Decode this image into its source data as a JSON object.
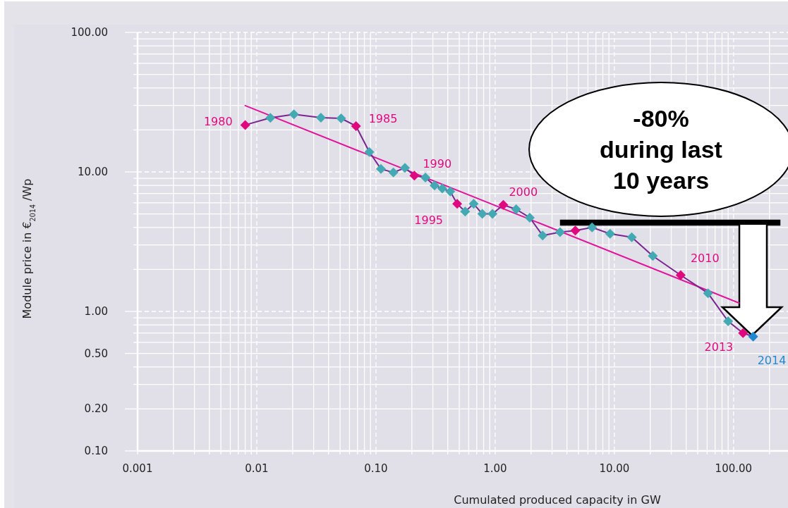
{
  "chart_data": {
    "type": "line",
    "xlabel": "Cumulated produced capacity in GW",
    "ylabel": "Module price in €$_{2014}$ /Wp",
    "log": "xy",
    "grid": true,
    "marker": "diamond",
    "xlim": [
      0.001,
      290
    ],
    "ylim": [
      0.1,
      100
    ],
    "xticks": [
      {
        "value": 0.001,
        "label": "0.001"
      },
      {
        "value": 0.002,
        "label": null
      },
      {
        "value": 0.003,
        "label": null
      },
      {
        "value": 0.004,
        "label": null
      },
      {
        "value": 0.005,
        "label": null
      },
      {
        "value": 0.006,
        "label": null
      },
      {
        "value": 0.007,
        "label": null
      },
      {
        "value": 0.008,
        "label": null
      },
      {
        "value": 0.009,
        "label": null
      },
      {
        "value": 0.01,
        "label": "0.01"
      },
      {
        "value": 0.02,
        "label": null
      },
      {
        "value": 0.03,
        "label": null
      },
      {
        "value": 0.04,
        "label": null
      },
      {
        "value": 0.05,
        "label": null
      },
      {
        "value": 0.06,
        "label": null
      },
      {
        "value": 0.07,
        "label": null
      },
      {
        "value": 0.08,
        "label": null
      },
      {
        "value": 0.09,
        "label": null
      },
      {
        "value": 0.1,
        "label": "0.10"
      },
      {
        "value": 0.2,
        "label": null
      },
      {
        "value": 0.3,
        "label": null
      },
      {
        "value": 0.4,
        "label": null
      },
      {
        "value": 0.5,
        "label": null
      },
      {
        "value": 0.6,
        "label": null
      },
      {
        "value": 0.7,
        "label": null
      },
      {
        "value": 0.8,
        "label": null
      },
      {
        "value": 0.9,
        "label": null
      },
      {
        "value": 1,
        "label": "1.00"
      },
      {
        "value": 2,
        "label": null
      },
      {
        "value": 3,
        "label": null
      },
      {
        "value": 4,
        "label": null
      },
      {
        "value": 5,
        "label": null
      },
      {
        "value": 6,
        "label": null
      },
      {
        "value": 7,
        "label": null
      },
      {
        "value": 8,
        "label": null
      },
      {
        "value": 9,
        "label": null
      },
      {
        "value": 10,
        "label": "10.00"
      },
      {
        "value": 20,
        "label": null
      },
      {
        "value": 30,
        "label": null
      },
      {
        "value": 40,
        "label": null
      },
      {
        "value": 50,
        "label": null
      },
      {
        "value": 60,
        "label": null
      },
      {
        "value": 70,
        "label": null
      },
      {
        "value": 80,
        "label": null
      },
      {
        "value": 90,
        "label": null
      },
      {
        "value": 100,
        "label": "100.00"
      },
      {
        "value": 200,
        "label": null
      }
    ],
    "yticks": [
      {
        "value": 0.1,
        "label": "0.10"
      },
      {
        "value": 0.2,
        "label": "0.20"
      },
      {
        "value": 0.3,
        "label": null
      },
      {
        "value": 0.4,
        "label": null
      },
      {
        "value": 0.5,
        "label": "0.50"
      },
      {
        "value": 0.6,
        "label": null
      },
      {
        "value": 0.7,
        "label": null
      },
      {
        "value": 0.8,
        "label": null
      },
      {
        "value": 0.9,
        "label": null
      },
      {
        "value": 1,
        "label": "1.00"
      },
      {
        "value": 2,
        "label": null
      },
      {
        "value": 3,
        "label": null
      },
      {
        "value": 4,
        "label": null
      },
      {
        "value": 5,
        "label": null
      },
      {
        "value": 6,
        "label": null
      },
      {
        "value": 7,
        "label": null
      },
      {
        "value": 8,
        "label": null
      },
      {
        "value": 9,
        "label": null
      },
      {
        "value": 10,
        "label": "10.00"
      },
      {
        "value": 20,
        "label": null
      },
      {
        "value": 30,
        "label": null
      },
      {
        "value": 40,
        "label": null
      },
      {
        "value": 50,
        "label": null
      },
      {
        "value": 60,
        "label": null
      },
      {
        "value": 70,
        "label": null
      },
      {
        "value": 80,
        "label": null
      },
      {
        "value": 90,
        "label": null
      },
      {
        "value": 100,
        "label": "100.00"
      }
    ],
    "x": [
      0.008,
      0.013,
      0.0205,
      0.0345,
      0.051,
      0.068,
      0.088,
      0.11,
      0.14,
      0.175,
      0.21,
      0.26,
      0.31,
      0.36,
      0.42,
      0.48,
      0.56,
      0.66,
      0.78,
      0.95,
      1.17,
      1.5,
      1.95,
      2.5,
      3.5,
      4.7,
      6.5,
      9.2,
      14,
      21,
      36,
      61,
      90,
      120,
      146
    ],
    "series": [
      {
        "color": "#7a2590",
        "values": [
          21.7,
          24.4,
          25.9,
          24.5,
          24.2,
          21.3,
          13.9,
          10.5,
          9.9,
          10.7,
          9.4,
          9.1,
          8.0,
          7.6,
          7.25,
          5.9,
          5.2,
          5.9,
          5.0,
          5.0,
          5.8,
          5.4,
          4.7,
          3.5,
          3.7,
          3.8,
          4.0,
          3.6,
          3.4,
          2.5,
          1.82,
          1.35,
          0.85,
          0.7,
          0.66
        ],
        "colors": [
          "#e0087e",
          "#43a9b3",
          "#43a9b3",
          "#43a9b3",
          "#43a9b3",
          "#e0087e",
          "#43a9b3",
          "#43a9b3",
          "#43a9b3",
          "#43a9b3",
          "#e0087e",
          "#43a9b3",
          "#43a9b3",
          "#43a9b3",
          "#43a9b3",
          "#e0087e",
          "#43a9b3",
          "#43a9b3",
          "#43a9b3",
          "#43a9b3",
          "#e0087e",
          "#43a9b3",
          "#43a9b3",
          "#43a9b3",
          "#43a9b3",
          "#e0087e",
          "#43a9b3",
          "#43a9b3",
          "#43a9b3",
          "#43a9b3",
          "#e0087e",
          "#43a9b3",
          "#43a9b3",
          "#e0087e",
          "#1e88d0"
        ]
      },
      {
        "type": "line",
        "marker": "none",
        "color": "#e0159a",
        "x": [
          0.008,
          111
        ],
        "values": [
          29.9,
          1.15
        ]
      }
    ],
    "annotations": [
      {
        "text": "1980",
        "x": 0.008,
        "y": 21.7
      },
      {
        "text": "1985",
        "x": 0.068,
        "y": 21.3
      },
      {
        "text": "1990",
        "x": 0.21,
        "y": 9.4
      },
      {
        "text": "1995",
        "x": 0.48,
        "y": 5.9
      },
      {
        "text": "2000",
        "x": 1.17,
        "y": 5.8
      },
      {
        "text": "2010",
        "x": 36,
        "y": 1.82
      },
      {
        "text": "2013",
        "x": 120,
        "y": 0.7
      },
      {
        "text": "2014",
        "x": 146,
        "y": 0.66
      },
      "-80%\nduring last\n10 years"
    ]
  }
}
